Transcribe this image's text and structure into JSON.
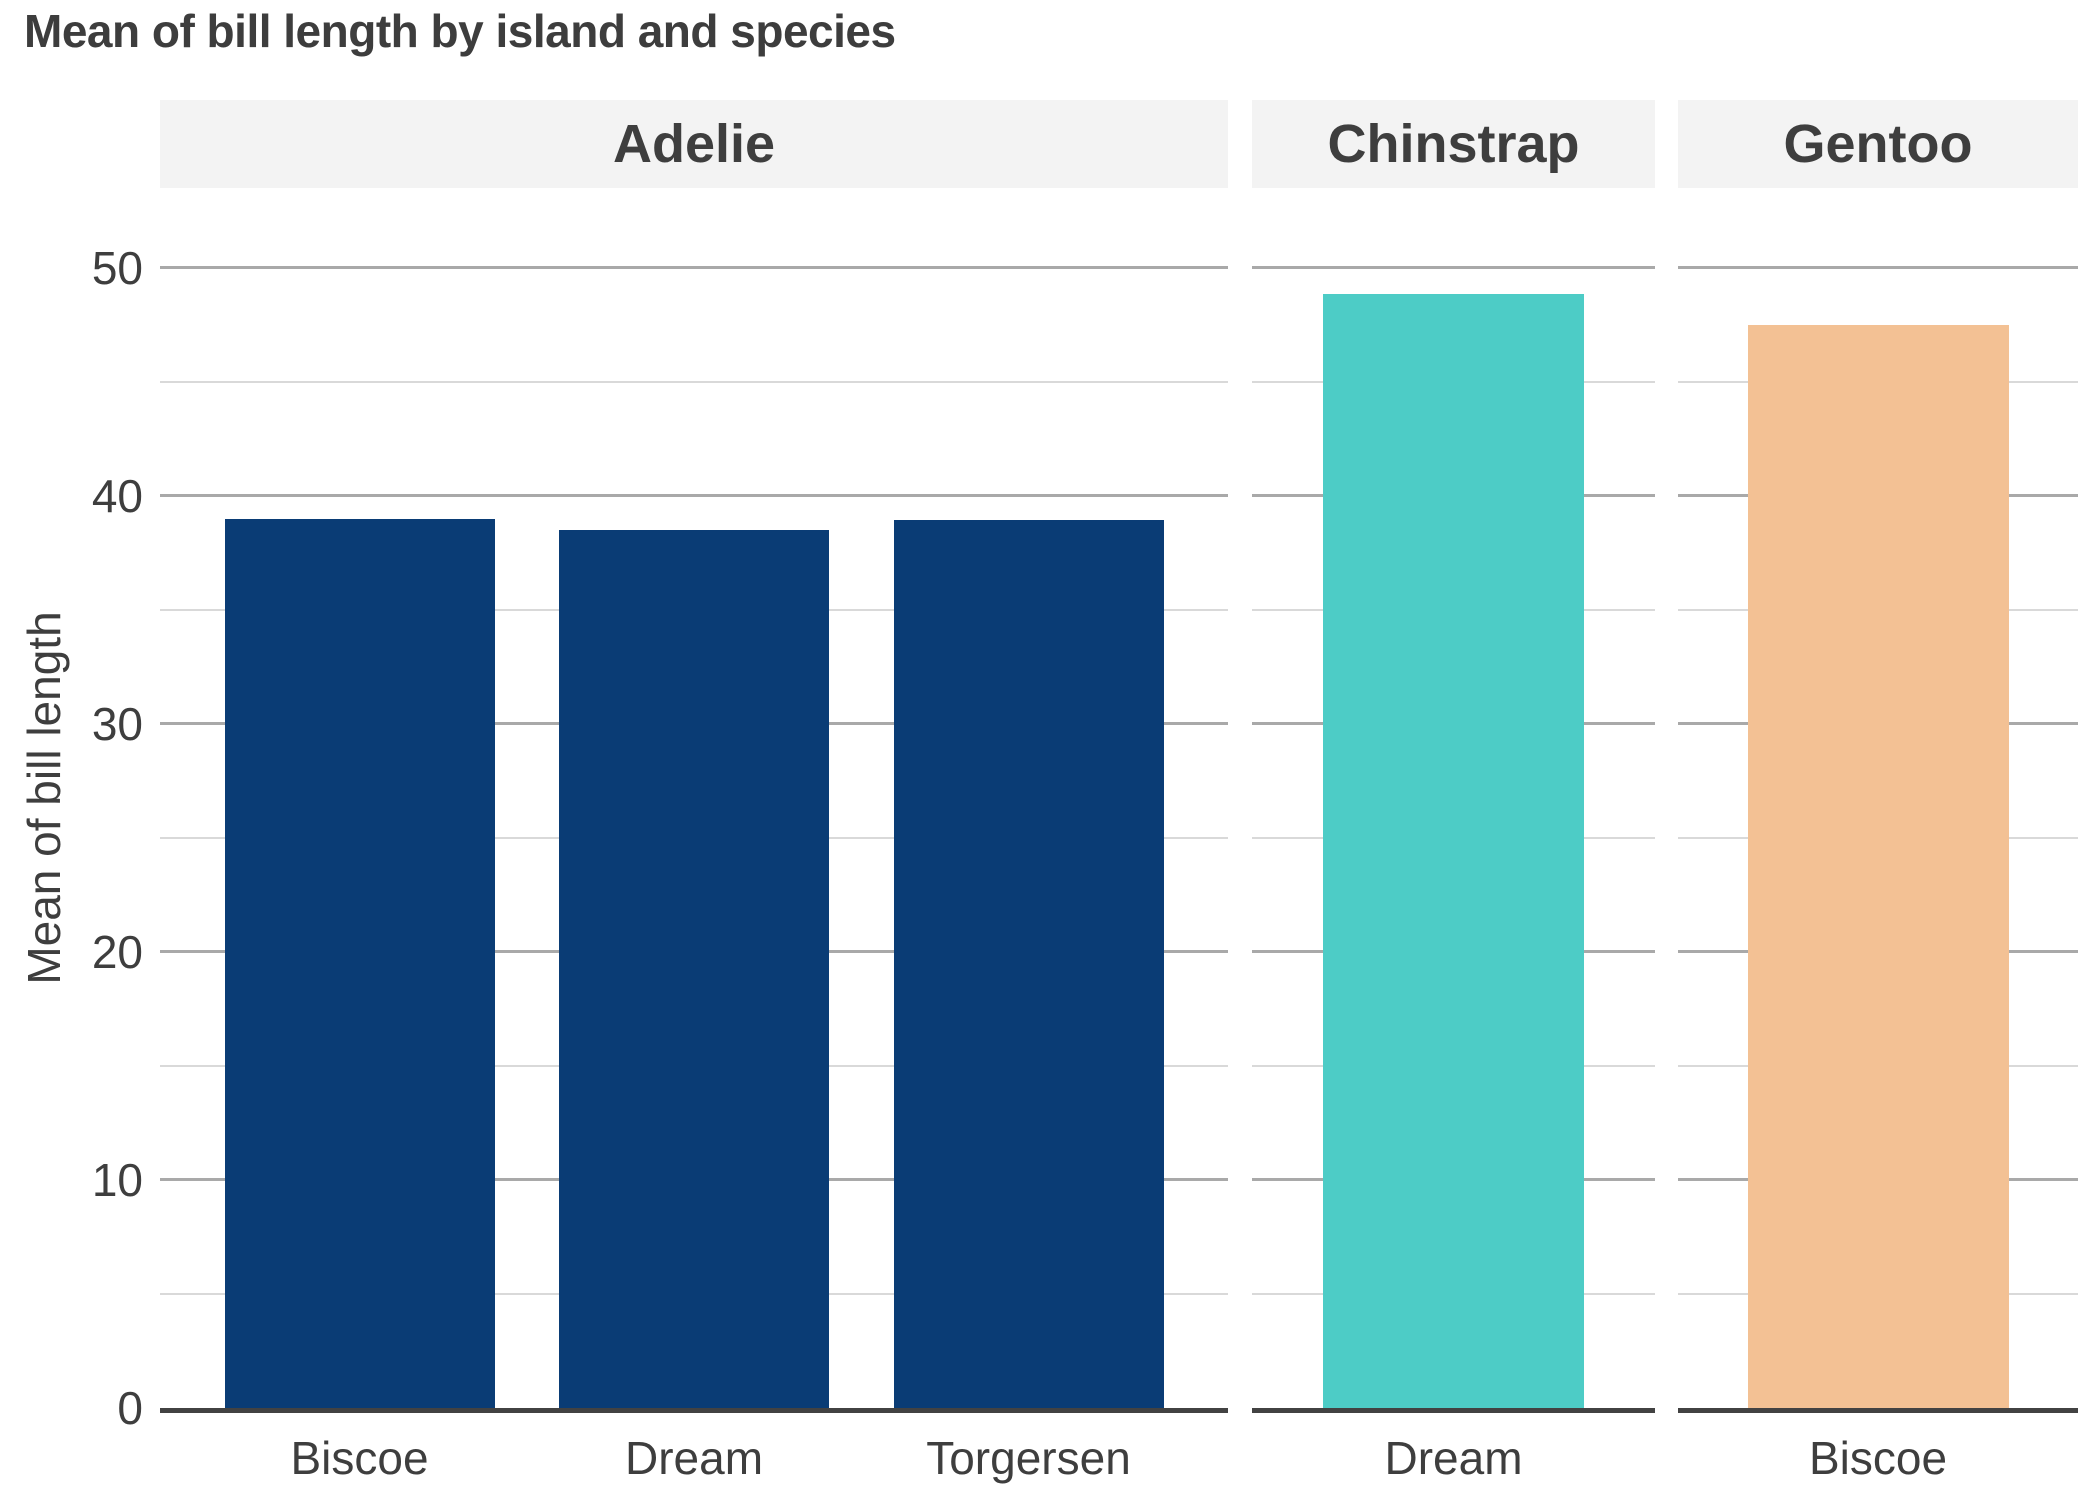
{
  "chart_data": {
    "type": "bar",
    "title": "Mean of bill length by island and species",
    "ylabel": "Mean of bill length",
    "xlabel": "",
    "facet_by": "species",
    "x_by": "island",
    "ylim": [
      0,
      53.5
    ],
    "yticks_major": [
      0,
      10,
      20,
      30,
      40,
      50
    ],
    "yticks_minor": [
      5,
      15,
      25,
      35,
      45
    ],
    "grid": "horizontal, major and minor lines",
    "legend": false,
    "facets": [
      {
        "label": "Adelie",
        "bar_color": "#0a3c75",
        "categories": [
          "Biscoe",
          "Dream",
          "Torgersen"
        ],
        "values": [
          38.98,
          38.5,
          38.95
        ]
      },
      {
        "label": "Chinstrap",
        "bar_color": "#4dccc6",
        "categories": [
          "Dream"
        ],
        "values": [
          48.83
        ]
      },
      {
        "label": "Gentoo",
        "bar_color": "#f3c194",
        "categories": [
          "Biscoe"
        ],
        "values": [
          47.5
        ]
      }
    ],
    "style": {
      "background": "#ffffff",
      "strip_bg": "#f3f3f3",
      "text_color": "#3e3e3e",
      "title_color": "#3d3d3d",
      "grid_major_color": "#a9a9a9",
      "grid_minor_color": "#d9d9d9",
      "axis_line_color": "#424242"
    }
  }
}
